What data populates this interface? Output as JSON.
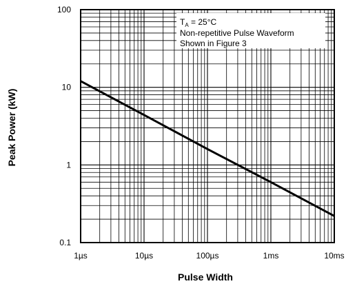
{
  "chart_data": {
    "type": "line",
    "xscale": "log",
    "yscale": "log",
    "xlabel": "Pulse Width",
    "ylabel": "Peak Power (kW)",
    "xlim_seconds": [
      1e-06,
      0.01
    ],
    "ylim_kw": [
      0.1,
      100
    ],
    "x_ticks": [
      {
        "value": 1e-06,
        "label": "1µs"
      },
      {
        "value": 1e-05,
        "label": "10µs"
      },
      {
        "value": 0.0001,
        "label": "100µs"
      },
      {
        "value": 0.001,
        "label": "1ms"
      },
      {
        "value": 0.01,
        "label": "10ms"
      }
    ],
    "y_ticks": [
      {
        "value": 0.1,
        "label": "0.1"
      },
      {
        "value": 1,
        "label": "1"
      },
      {
        "value": 10,
        "label": "10"
      },
      {
        "value": 100,
        "label": "100"
      }
    ],
    "grid": true,
    "series": [
      {
        "x": [
          1e-06,
          1e-05,
          0.0001,
          0.001,
          0.01
        ],
        "y": [
          12,
          4.4,
          1.6,
          0.6,
          0.22
        ]
      }
    ],
    "annotation": {
      "ta_main": "T",
      "ta_sub": "A",
      "ta_rest": " = 25°C",
      "line2": "Non-repetitive Pulse Waveform",
      "line3": "Shown in Figure 3"
    },
    "colors": {
      "grid": "#000000",
      "line": "#000000",
      "background": "#ffffff"
    }
  }
}
